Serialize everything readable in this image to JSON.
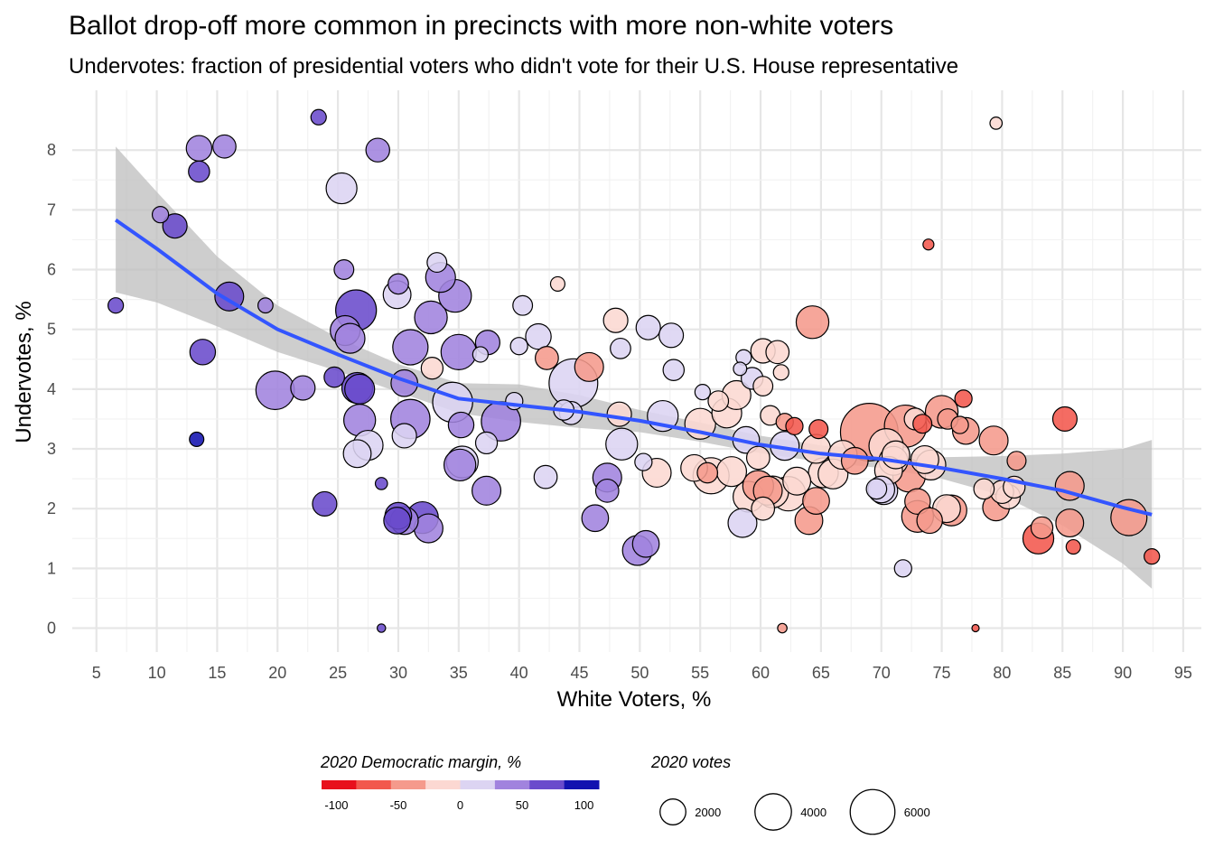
{
  "chart_data": {
    "type": "scatter",
    "title": "Ballot drop-off more common in precincts with more non-white voters",
    "subtitle": "Undervotes: fraction of presidential voters who didn't vote for their U.S. House representative",
    "xlabel": "White Voters, %",
    "ylabel": "Undervotes, %",
    "xlim": [
      3,
      96.5
    ],
    "ylim": [
      -0.4,
      9.0
    ],
    "x_ticks": [
      5,
      10,
      15,
      20,
      25,
      30,
      35,
      40,
      45,
      50,
      55,
      60,
      65,
      70,
      75,
      80,
      85,
      90,
      95
    ],
    "y_ticks": [
      0,
      1,
      2,
      3,
      4,
      5,
      6,
      7,
      8
    ],
    "grid": true,
    "color_scale": {
      "title": "2020 Democratic margin, %",
      "colors": [
        "#e8101c",
        "#f2584d",
        "#f59a8c",
        "#fcd8d2",
        "#dcd4f2",
        "#a183de",
        "#6a4bcc",
        "#1212b0"
      ],
      "range": [
        -112,
        112
      ],
      "tick_values": [
        -100,
        -50,
        0,
        50,
        100
      ],
      "tick_labels": [
        "-100",
        "-50",
        "0",
        "50",
        "100"
      ]
    },
    "size_scale": {
      "title": "2020 votes",
      "values": [
        2000,
        4000,
        6000
      ],
      "labels": [
        "2000",
        "4000",
        "6000"
      ],
      "max_value": 6000
    },
    "trend": {
      "method": "smooth",
      "color": "#3355ff",
      "band_color": "#bdbdbd",
      "points": [
        {
          "x": 6.6,
          "y": 6.83,
          "lo": 5.62,
          "hi": 8.06
        },
        {
          "x": 10,
          "y": 6.35,
          "lo": 5.45,
          "hi": 7.3
        },
        {
          "x": 15,
          "y": 5.6,
          "lo": 5.05,
          "hi": 6.22
        },
        {
          "x": 20,
          "y": 5.0,
          "lo": 4.62,
          "hi": 5.4
        },
        {
          "x": 25,
          "y": 4.58,
          "lo": 4.3,
          "hi": 4.86
        },
        {
          "x": 30,
          "y": 4.18,
          "lo": 3.95,
          "hi": 4.42
        },
        {
          "x": 35,
          "y": 3.84,
          "lo": 3.6,
          "hi": 4.1
        },
        {
          "x": 40,
          "y": 3.73,
          "lo": 3.45,
          "hi": 4.08
        },
        {
          "x": 45,
          "y": 3.62,
          "lo": 3.35,
          "hi": 3.9
        },
        {
          "x": 50,
          "y": 3.47,
          "lo": 3.28,
          "hi": 3.65
        },
        {
          "x": 55,
          "y": 3.28,
          "lo": 3.12,
          "hi": 3.44
        },
        {
          "x": 60,
          "y": 3.07,
          "lo": 2.93,
          "hi": 3.22
        },
        {
          "x": 65,
          "y": 2.92,
          "lo": 2.78,
          "hi": 3.06
        },
        {
          "x": 70,
          "y": 2.83,
          "lo": 2.68,
          "hi": 2.98
        },
        {
          "x": 75,
          "y": 2.68,
          "lo": 2.5,
          "hi": 2.86
        },
        {
          "x": 80,
          "y": 2.5,
          "lo": 2.22,
          "hi": 2.88
        },
        {
          "x": 85,
          "y": 2.3,
          "lo": 1.72,
          "hi": 2.92
        },
        {
          "x": 90,
          "y": 2.02,
          "lo": 1.08,
          "hi": 3.0
        },
        {
          "x": 92.4,
          "y": 1.9,
          "lo": 0.66,
          "hi": 3.15
        }
      ]
    },
    "points": [
      {
        "x": 6.6,
        "y": 5.4,
        "votes": 400,
        "margin": 60
      },
      {
        "x": 10.3,
        "y": 6.92,
        "votes": 450,
        "margin": 40
      },
      {
        "x": 11.5,
        "y": 6.73,
        "votes": 1000,
        "margin": 75
      },
      {
        "x": 13.5,
        "y": 8.03,
        "votes": 1100,
        "margin": 55
      },
      {
        "x": 13.5,
        "y": 7.64,
        "votes": 750,
        "margin": 65
      },
      {
        "x": 15.6,
        "y": 8.06,
        "votes": 900,
        "margin": 40
      },
      {
        "x": 13.8,
        "y": 4.62,
        "votes": 1100,
        "margin": 60
      },
      {
        "x": 13.3,
        "y": 3.16,
        "votes": 350,
        "margin": 85
      },
      {
        "x": 16.0,
        "y": 5.55,
        "votes": 1400,
        "margin": 78
      },
      {
        "x": 19.0,
        "y": 5.4,
        "votes": 380,
        "margin": 40
      },
      {
        "x": 19.8,
        "y": 3.98,
        "votes": 2500,
        "margin": 38
      },
      {
        "x": 22.1,
        "y": 4.02,
        "votes": 1000,
        "margin": 35
      },
      {
        "x": 23.4,
        "y": 8.55,
        "votes": 400,
        "margin": 70
      },
      {
        "x": 23.9,
        "y": 2.08,
        "votes": 1000,
        "margin": 72
      },
      {
        "x": 24.7,
        "y": 4.2,
        "votes": 700,
        "margin": 68
      },
      {
        "x": 25.3,
        "y": 7.36,
        "votes": 1600,
        "margin": 5
      },
      {
        "x": 25.5,
        "y": 6.0,
        "votes": 650,
        "margin": 35
      },
      {
        "x": 25.6,
        "y": 4.98,
        "votes": 1500,
        "margin": 40
      },
      {
        "x": 26.5,
        "y": 5.32,
        "votes": 2800,
        "margin": 58
      },
      {
        "x": 26.0,
        "y": 4.85,
        "votes": 1500,
        "margin": 55
      },
      {
        "x": 26.6,
        "y": 4.02,
        "votes": 1600,
        "margin": 72
      },
      {
        "x": 26.8,
        "y": 4.0,
        "votes": 1500,
        "margin": 60
      },
      {
        "x": 26.8,
        "y": 3.48,
        "votes": 1700,
        "margin": 35
      },
      {
        "x": 26.6,
        "y": 2.92,
        "votes": 1300,
        "margin": 15
      },
      {
        "x": 27.5,
        "y": 3.06,
        "votes": 1500,
        "margin": 5
      },
      {
        "x": 28.3,
        "y": 8.0,
        "votes": 950,
        "margin": 30
      },
      {
        "x": 28.6,
        "y": 2.42,
        "votes": 250,
        "margin": 80
      },
      {
        "x": 28.6,
        "y": 0.0,
        "votes": 120,
        "margin": 65
      },
      {
        "x": 29.9,
        "y": 5.58,
        "votes": 1300,
        "margin": 25
      },
      {
        "x": 30.0,
        "y": 5.76,
        "votes": 700,
        "margin": 55
      },
      {
        "x": 30.5,
        "y": 4.1,
        "votes": 1200,
        "margin": 40
      },
      {
        "x": 31.0,
        "y": 4.7,
        "votes": 2100,
        "margin": 40
      },
      {
        "x": 30.5,
        "y": 3.22,
        "votes": 1000,
        "margin": 25
      },
      {
        "x": 31.0,
        "y": 3.5,
        "votes": 2600,
        "margin": 30
      },
      {
        "x": 30.0,
        "y": 1.88,
        "votes": 1200,
        "margin": 65
      },
      {
        "x": 29.9,
        "y": 1.8,
        "votes": 1200,
        "margin": 70
      },
      {
        "x": 30.5,
        "y": 1.8,
        "votes": 1300,
        "margin": 55
      },
      {
        "x": 32.0,
        "y": 1.85,
        "votes": 1700,
        "margin": 60
      },
      {
        "x": 32.5,
        "y": 1.67,
        "votes": 1400,
        "margin": 55
      },
      {
        "x": 33.2,
        "y": 6.12,
        "votes": 650,
        "margin": 5
      },
      {
        "x": 32.7,
        "y": 5.2,
        "votes": 1800,
        "margin": 38
      },
      {
        "x": 32.8,
        "y": 4.35,
        "votes": 800,
        "margin": -15
      },
      {
        "x": 33.5,
        "y": 5.87,
        "votes": 1500,
        "margin": 30
      },
      {
        "x": 34.7,
        "y": 5.56,
        "votes": 1800,
        "margin": 30
      },
      {
        "x": 35.0,
        "y": 4.62,
        "votes": 2100,
        "margin": 35
      },
      {
        "x": 34.5,
        "y": 3.78,
        "votes": 2700,
        "margin": 25
      },
      {
        "x": 35.2,
        "y": 3.4,
        "votes": 1100,
        "margin": 45
      },
      {
        "x": 35.3,
        "y": 2.78,
        "votes": 1700,
        "margin": 15
      },
      {
        "x": 35.1,
        "y": 2.73,
        "votes": 1700,
        "margin": 55
      },
      {
        "x": 36.8,
        "y": 4.58,
        "votes": 400,
        "margin": 15
      },
      {
        "x": 37.4,
        "y": 4.78,
        "votes": 1000,
        "margin": 30
      },
      {
        "x": 37.3,
        "y": 3.1,
        "votes": 800,
        "margin": 5
      },
      {
        "x": 37.3,
        "y": 2.3,
        "votes": 1400,
        "margin": 45
      },
      {
        "x": 38.5,
        "y": 3.46,
        "votes": 2600,
        "margin": 30
      },
      {
        "x": 39.6,
        "y": 3.8,
        "votes": 500,
        "margin": 20
      },
      {
        "x": 40.3,
        "y": 5.4,
        "votes": 650,
        "margin": 5
      },
      {
        "x": 40.0,
        "y": 4.72,
        "votes": 500,
        "margin": 5
      },
      {
        "x": 41.6,
        "y": 4.88,
        "votes": 1100,
        "margin": 5
      },
      {
        "x": 42.3,
        "y": 4.52,
        "votes": 900,
        "margin": -35
      },
      {
        "x": 42.2,
        "y": 2.53,
        "votes": 900,
        "margin": 5
      },
      {
        "x": 43.2,
        "y": 5.76,
        "votes": 350,
        "margin": -25
      },
      {
        "x": 43.7,
        "y": 3.65,
        "votes": 700,
        "margin": 10
      },
      {
        "x": 44.3,
        "y": 3.6,
        "votes": 900,
        "margin": 20
      },
      {
        "x": 44.5,
        "y": 4.1,
        "votes": 4000,
        "margin": 5
      },
      {
        "x": 45.8,
        "y": 4.37,
        "votes": 1400,
        "margin": -40
      },
      {
        "x": 46.3,
        "y": 1.84,
        "votes": 1200,
        "margin": 55
      },
      {
        "x": 47.3,
        "y": 2.52,
        "votes": 1400,
        "margin": 35
      },
      {
        "x": 47.3,
        "y": 2.3,
        "votes": 900,
        "margin": 35
      },
      {
        "x": 48.0,
        "y": 5.15,
        "votes": 1000,
        "margin": -15
      },
      {
        "x": 48.3,
        "y": 3.58,
        "votes": 1000,
        "margin": -10
      },
      {
        "x": 48.5,
        "y": 3.08,
        "votes": 1700,
        "margin": 20
      },
      {
        "x": 48.4,
        "y": 4.68,
        "votes": 700,
        "margin": 5
      },
      {
        "x": 49.8,
        "y": 1.3,
        "votes": 1500,
        "margin": 35
      },
      {
        "x": 50.3,
        "y": 2.78,
        "votes": 500,
        "margin": 5
      },
      {
        "x": 50.5,
        "y": 1.41,
        "votes": 1200,
        "margin": 35
      },
      {
        "x": 50.7,
        "y": 5.03,
        "votes": 1000,
        "margin": 5
      },
      {
        "x": 51.4,
        "y": 2.6,
        "votes": 1400,
        "margin": -5
      },
      {
        "x": 51.9,
        "y": 3.55,
        "votes": 1600,
        "margin": 5
      },
      {
        "x": 52.6,
        "y": 4.9,
        "votes": 1000,
        "margin": 5
      },
      {
        "x": 52.8,
        "y": 4.32,
        "votes": 750,
        "margin": 5
      },
      {
        "x": 54.5,
        "y": 2.68,
        "votes": 1200,
        "margin": -10
      },
      {
        "x": 55.0,
        "y": 3.42,
        "votes": 1600,
        "margin": -5
      },
      {
        "x": 55.2,
        "y": 3.95,
        "votes": 400,
        "margin": 20
      },
      {
        "x": 55.6,
        "y": 2.6,
        "votes": 700,
        "margin": -35
      },
      {
        "x": 55.9,
        "y": 2.55,
        "votes": 2200,
        "margin": -25
      },
      {
        "x": 56.5,
        "y": 3.8,
        "votes": 700,
        "margin": -25
      },
      {
        "x": 57.2,
        "y": 3.6,
        "votes": 1500,
        "margin": -15
      },
      {
        "x": 57.6,
        "y": 2.62,
        "votes": 1500,
        "margin": -15
      },
      {
        "x": 58.0,
        "y": 3.9,
        "votes": 1400,
        "margin": -15
      },
      {
        "x": 58.3,
        "y": 4.34,
        "votes": 300,
        "margin": 5
      },
      {
        "x": 58.6,
        "y": 4.53,
        "votes": 400,
        "margin": 5
      },
      {
        "x": 58.5,
        "y": 1.76,
        "votes": 1400,
        "margin": 5
      },
      {
        "x": 58.8,
        "y": 3.15,
        "votes": 1200,
        "margin": 0
      },
      {
        "x": 59.0,
        "y": 2.2,
        "votes": 1600,
        "margin": -15
      },
      {
        "x": 59.3,
        "y": 4.18,
        "votes": 800,
        "margin": 5
      },
      {
        "x": 59.8,
        "y": 2.38,
        "votes": 1600,
        "margin": -30
      },
      {
        "x": 59.8,
        "y": 2.85,
        "votes": 900,
        "margin": -15
      },
      {
        "x": 60.2,
        "y": 2.0,
        "votes": 900,
        "margin": -20
      },
      {
        "x": 60.2,
        "y": 4.64,
        "votes": 1000,
        "margin": -15
      },
      {
        "x": 60.2,
        "y": 4.05,
        "votes": 650,
        "margin": -5
      },
      {
        "x": 60.6,
        "y": 2.3,
        "votes": 1400,
        "margin": -30
      },
      {
        "x": 60.8,
        "y": 3.56,
        "votes": 650,
        "margin": -25
      },
      {
        "x": 61.0,
        "y": 2.28,
        "votes": 1700,
        "margin": -20
      },
      {
        "x": 61.4,
        "y": 4.62,
        "votes": 900,
        "margin": -15
      },
      {
        "x": 61.7,
        "y": 4.28,
        "votes": 400,
        "margin": -5
      },
      {
        "x": 61.8,
        "y": 0.0,
        "votes": 150,
        "margin": -55
      },
      {
        "x": 62.0,
        "y": 3.45,
        "votes": 500,
        "margin": -55
      },
      {
        "x": 62.0,
        "y": 3.05,
        "votes": 1400,
        "margin": 5
      },
      {
        "x": 62.3,
        "y": 2.25,
        "votes": 2000,
        "margin": -25
      },
      {
        "x": 62.8,
        "y": 3.38,
        "votes": 500,
        "margin": -65
      },
      {
        "x": 63.0,
        "y": 2.46,
        "votes": 1300,
        "margin": -25
      },
      {
        "x": 64.0,
        "y": 1.8,
        "votes": 1300,
        "margin": -30
      },
      {
        "x": 64.3,
        "y": 5.12,
        "votes": 1800,
        "margin": -30
      },
      {
        "x": 64.6,
        "y": 2.13,
        "votes": 1200,
        "margin": -35
      },
      {
        "x": 64.6,
        "y": 3.0,
        "votes": 1400,
        "margin": -20
      },
      {
        "x": 64.8,
        "y": 3.33,
        "votes": 600,
        "margin": -60
      },
      {
        "x": 65.2,
        "y": 2.6,
        "votes": 1500,
        "margin": -15
      },
      {
        "x": 66.0,
        "y": 2.58,
        "votes": 1500,
        "margin": -15
      },
      {
        "x": 66.8,
        "y": 2.9,
        "votes": 1400,
        "margin": -25
      },
      {
        "x": 67.8,
        "y": 2.8,
        "votes": 1200,
        "margin": -30
      },
      {
        "x": 69.0,
        "y": 3.28,
        "votes": 5600,
        "margin": -30
      },
      {
        "x": 69.6,
        "y": 2.33,
        "votes": 700,
        "margin": 5
      },
      {
        "x": 70.0,
        "y": 2.32,
        "votes": 1200,
        "margin": 5
      },
      {
        "x": 70.2,
        "y": 2.3,
        "votes": 1300,
        "margin": 5
      },
      {
        "x": 70.4,
        "y": 3.05,
        "votes": 2000,
        "margin": -20
      },
      {
        "x": 70.6,
        "y": 2.64,
        "votes": 1300,
        "margin": -15
      },
      {
        "x": 71.0,
        "y": 2.8,
        "votes": 1400,
        "margin": -25
      },
      {
        "x": 71.2,
        "y": 2.9,
        "votes": 1300,
        "margin": -15
      },
      {
        "x": 71.8,
        "y": 1.0,
        "votes": 500,
        "margin": 5
      },
      {
        "x": 72.0,
        "y": 3.38,
        "votes": 3000,
        "margin": -30
      },
      {
        "x": 72.3,
        "y": 2.55,
        "votes": 1800,
        "margin": -30
      },
      {
        "x": 72.8,
        "y": 3.5,
        "votes": 800,
        "margin": -5
      },
      {
        "x": 73.0,
        "y": 1.87,
        "votes": 1700,
        "margin": -45
      },
      {
        "x": 73.0,
        "y": 2.12,
        "votes": 1100,
        "margin": -50
      },
      {
        "x": 73.4,
        "y": 3.42,
        "votes": 600,
        "margin": -60
      },
      {
        "x": 73.6,
        "y": 2.82,
        "votes": 1300,
        "margin": -20
      },
      {
        "x": 73.9,
        "y": 6.42,
        "votes": 200,
        "margin": -60
      },
      {
        "x": 74.0,
        "y": 1.8,
        "votes": 1100,
        "margin": -30
      },
      {
        "x": 74.1,
        "y": 2.73,
        "votes": 1500,
        "margin": -25
      },
      {
        "x": 75.0,
        "y": 3.62,
        "votes": 1800,
        "margin": -50
      },
      {
        "x": 75.4,
        "y": 2.0,
        "votes": 1300,
        "margin": -25
      },
      {
        "x": 75.8,
        "y": 1.97,
        "votes": 1600,
        "margin": -40
      },
      {
        "x": 75.5,
        "y": 3.5,
        "votes": 700,
        "margin": -40
      },
      {
        "x": 76.5,
        "y": 3.4,
        "votes": 500,
        "margin": -45
      },
      {
        "x": 76.8,
        "y": 3.84,
        "votes": 500,
        "margin": -65
      },
      {
        "x": 77.0,
        "y": 3.3,
        "votes": 1200,
        "margin": -50
      },
      {
        "x": 77.8,
        "y": 0.0,
        "votes": 50,
        "margin": -75
      },
      {
        "x": 78.5,
        "y": 2.33,
        "votes": 700,
        "margin": -25
      },
      {
        "x": 79.3,
        "y": 3.14,
        "votes": 1400,
        "margin": -55
      },
      {
        "x": 79.5,
        "y": 8.45,
        "votes": 250,
        "margin": -15
      },
      {
        "x": 79.5,
        "y": 2.02,
        "votes": 1200,
        "margin": -55
      },
      {
        "x": 80.0,
        "y": 2.28,
        "votes": 900,
        "margin": -25
      },
      {
        "x": 80.5,
        "y": 2.2,
        "votes": 1000,
        "margin": -20
      },
      {
        "x": 81.0,
        "y": 2.36,
        "votes": 800,
        "margin": -25
      },
      {
        "x": 81.2,
        "y": 2.8,
        "votes": 600,
        "margin": -30
      },
      {
        "x": 83.0,
        "y": 1.5,
        "votes": 1600,
        "margin": -60
      },
      {
        "x": 83.3,
        "y": 1.68,
        "votes": 800,
        "margin": -55
      },
      {
        "x": 85.2,
        "y": 3.5,
        "votes": 1000,
        "margin": -60
      },
      {
        "x": 85.6,
        "y": 2.38,
        "votes": 1400,
        "margin": -30
      },
      {
        "x": 85.6,
        "y": 1.76,
        "votes": 1300,
        "margin": -30
      },
      {
        "x": 85.9,
        "y": 1.36,
        "votes": 350,
        "margin": -65
      },
      {
        "x": 90.5,
        "y": 1.85,
        "votes": 2200,
        "margin": -55
      },
      {
        "x": 92.4,
        "y": 1.2,
        "votes": 400,
        "margin": -70
      }
    ]
  }
}
